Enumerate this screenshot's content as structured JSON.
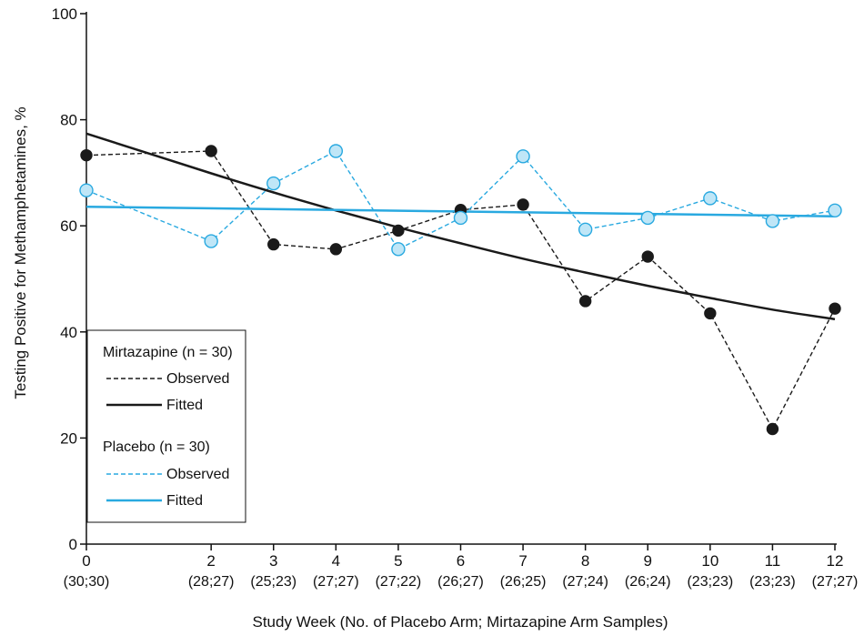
{
  "chart_data": {
    "type": "line",
    "xlabel": "Study Week (No. of Placebo Arm; Mirtazapine Arm Samples)",
    "ylabel": "Testing Positive for Methamphetamines, %",
    "xlim": [
      0,
      12
    ],
    "ylim": [
      0,
      100
    ],
    "x_ticks": [
      0,
      2,
      3,
      4,
      5,
      6,
      7,
      8,
      9,
      10,
      11,
      12
    ],
    "x_tick_sublabels": [
      "(30;30)",
      "(28;27)",
      "(25;23)",
      "(27;27)",
      "(27;22)",
      "(26;27)",
      "(26;25)",
      "(27;24)",
      "(26;24)",
      "(23;23)",
      "(23;23)",
      "(27;27)"
    ],
    "y_ticks": [
      0,
      20,
      40,
      60,
      80,
      100
    ],
    "grid": false,
    "legend_position": "bottom-left",
    "legend": {
      "groups": [
        {
          "title": "Mirtazapine (n = 30)",
          "entries": [
            "Observed",
            "Fitted"
          ]
        },
        {
          "title": "Placebo (n = 30)",
          "entries": [
            "Observed",
            "Fitted"
          ]
        }
      ]
    },
    "colors": {
      "mirtazapine": "#1a1a1a",
      "placebo": "#29a9e0",
      "placebo_marker_fill": "#bfe6f7"
    },
    "series": [
      {
        "group": "Mirtazapine",
        "kind": "Observed",
        "x": [
          0,
          2,
          3,
          4,
          5,
          6,
          7,
          8,
          9,
          10,
          11,
          12
        ],
        "values": [
          73.3,
          74.1,
          56.5,
          55.6,
          59.1,
          63.0,
          64.0,
          45.8,
          54.2,
          43.5,
          21.7,
          44.4
        ]
      },
      {
        "group": "Mirtazapine",
        "kind": "Fitted",
        "x": [
          0,
          2,
          3,
          4,
          5,
          6,
          7,
          8,
          9,
          10,
          11,
          12
        ],
        "values": [
          77.4,
          69.9,
          66.3,
          62.9,
          59.7,
          56.7,
          53.8,
          51.2,
          48.7,
          46.4,
          44.2,
          42.4
        ]
      },
      {
        "group": "Placebo",
        "kind": "Observed",
        "x": [
          0,
          2,
          3,
          4,
          5,
          6,
          7,
          8,
          9,
          10,
          11,
          12
        ],
        "values": [
          66.7,
          57.1,
          68.0,
          74.1,
          55.6,
          61.5,
          73.1,
          59.3,
          61.5,
          65.2,
          60.9,
          62.9
        ]
      },
      {
        "group": "Placebo",
        "kind": "Fitted",
        "x": [
          0,
          12
        ],
        "values": [
          63.6,
          61.8
        ]
      }
    ]
  }
}
